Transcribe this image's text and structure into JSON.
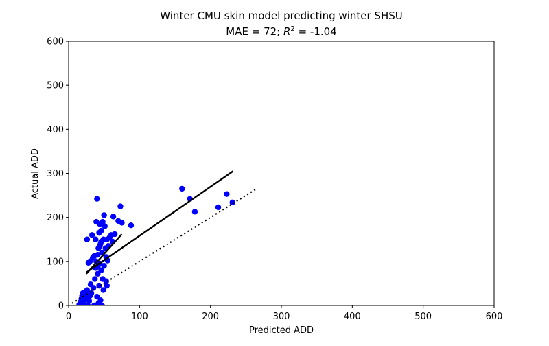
{
  "chart_data": {
    "type": "scatter",
    "title_line1": "Winter CMU skin model predicting winter SHSU",
    "title_mae": "MAE = 72; ",
    "title_r": "R",
    "title_sup": "2",
    "title_rval": " = -1.04",
    "xlabel": "Predicted ADD",
    "ylabel": "Actual ADD",
    "xlim": [
      0,
      600
    ],
    "ylim": [
      0,
      600
    ],
    "xticks": [
      0,
      100,
      200,
      300,
      400,
      500,
      600
    ],
    "yticks": [
      0,
      100,
      200,
      300,
      400,
      500,
      600
    ],
    "grid": false,
    "colors": {
      "points": "#0000ff",
      "lines": "#000000"
    },
    "points": [
      [
        15,
        2
      ],
      [
        17,
        8
      ],
      [
        18,
        15
      ],
      [
        19,
        22
      ],
      [
        20,
        28
      ],
      [
        21,
        5
      ],
      [
        22,
        12
      ],
      [
        23,
        20
      ],
      [
        24,
        30
      ],
      [
        25,
        18
      ],
      [
        26,
        35
      ],
      [
        27,
        0
      ],
      [
        28,
        25
      ],
      [
        29,
        10
      ],
      [
        30,
        22
      ],
      [
        31,
        48
      ],
      [
        32,
        28
      ],
      [
        34,
        108
      ],
      [
        35,
        40
      ],
      [
        36,
        0
      ],
      [
        37,
        60
      ],
      [
        38,
        85
      ],
      [
        38,
        150
      ],
      [
        39,
        100
      ],
      [
        39,
        190
      ],
      [
        40,
        242
      ],
      [
        40,
        20
      ],
      [
        41,
        72
      ],
      [
        41,
        115
      ],
      [
        42,
        5
      ],
      [
        42,
        130
      ],
      [
        43,
        165
      ],
      [
        43,
        45
      ],
      [
        44,
        95
      ],
      [
        44,
        185
      ],
      [
        45,
        12
      ],
      [
        45,
        140
      ],
      [
        46,
        80
      ],
      [
        46,
        170
      ],
      [
        47,
        0
      ],
      [
        47,
        120
      ],
      [
        48,
        60
      ],
      [
        48,
        190
      ],
      [
        49,
        35
      ],
      [
        49,
        150
      ],
      [
        50,
        90
      ],
      [
        50,
        205
      ],
      [
        51,
        180
      ],
      [
        52,
        130
      ],
      [
        53,
        55
      ],
      [
        53,
        110
      ],
      [
        54,
        45
      ],
      [
        54,
        150
      ],
      [
        55,
        102
      ],
      [
        56,
        135
      ],
      [
        58,
        155
      ],
      [
        60,
        160
      ],
      [
        62,
        145
      ],
      [
        63,
        202
      ],
      [
        65,
        162
      ],
      [
        70,
        192
      ],
      [
        73,
        225
      ],
      [
        75,
        188
      ],
      [
        88,
        182
      ],
      [
        26,
        150
      ],
      [
        28,
        97
      ],
      [
        30,
        100
      ],
      [
        33,
        160
      ],
      [
        36,
        112
      ],
      [
        41,
        88
      ],
      [
        44,
        135
      ],
      [
        46,
        145
      ],
      [
        160,
        265
      ],
      [
        171,
        242
      ],
      [
        178,
        213
      ],
      [
        211,
        223
      ],
      [
        223,
        253
      ],
      [
        231,
        234
      ]
    ],
    "fit_line_1": {
      "x": [
        25,
        232
      ],
      "y": [
        75,
        305
      ]
    },
    "fit_line_2": {
      "x": [
        25,
        75
      ],
      "y": [
        72,
        162
      ]
    },
    "identity_line": {
      "x": [
        5,
        266
      ],
      "y": [
        5,
        266
      ]
    }
  }
}
